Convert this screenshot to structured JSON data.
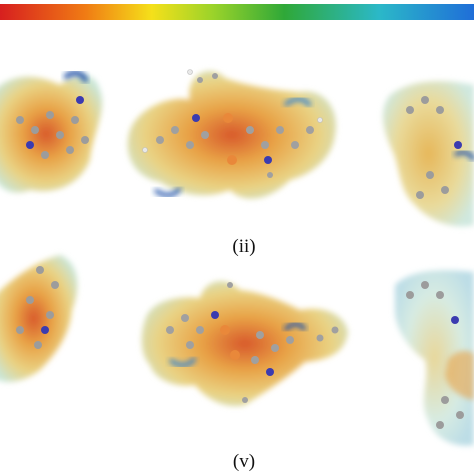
{
  "figure": {
    "colorbar": {
      "colors": [
        "#d71f1f",
        "#f07b14",
        "#f5e01a",
        "#9ad32a",
        "#2fa838",
        "#2bb8c8",
        "#1f6ed8"
      ]
    },
    "panels": [
      {
        "id": "i",
        "label": ""
      },
      {
        "id": "ii",
        "label": "(ii)"
      },
      {
        "id": "iii",
        "label": ""
      },
      {
        "id": "iv",
        "label": ""
      },
      {
        "id": "v",
        "label": "(v)"
      },
      {
        "id": "vi",
        "label": ""
      }
    ]
  }
}
